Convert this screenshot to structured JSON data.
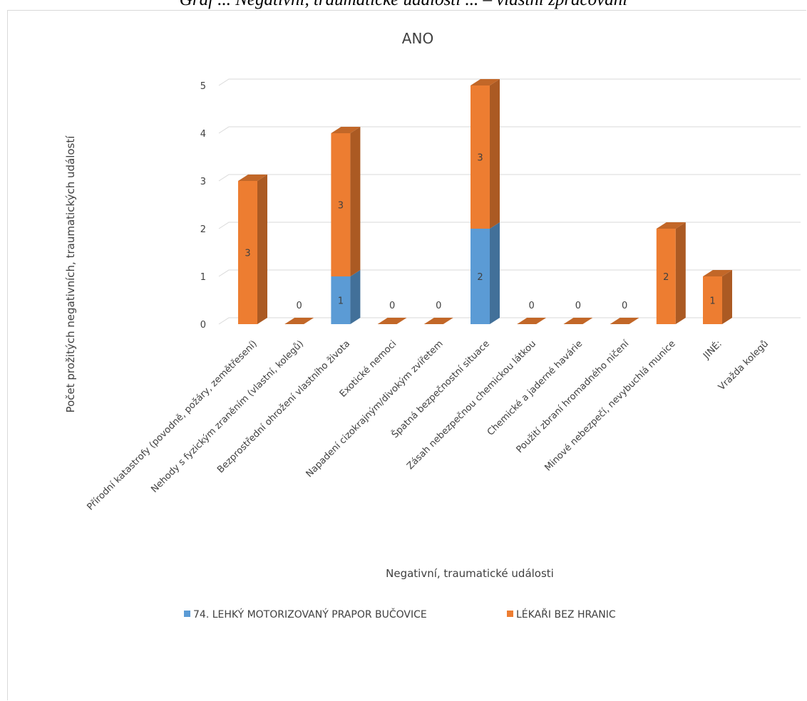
{
  "caption": "Graf ... Negativní, traumatické události ... – vlastní zpracování",
  "chart_data": {
    "type": "bar",
    "stacked": true,
    "title": "ANO",
    "xlabel": "Negativní, traumatické události",
    "ylabel": "Počet prožitých negativních, traumatických událostí",
    "ylim": [
      0,
      5
    ],
    "yticks": [
      0,
      1,
      2,
      3,
      4,
      5
    ],
    "grid": true,
    "legend_position": "bottom",
    "categories": [
      "Přírodní katastrofy (povodně, požáry, zemětřesení)",
      "Nehody s fyzickým zraněním (vlastní, kolegů)",
      "Bezprostřední ohrožení vlastního života",
      "Exotické nemoci",
      "Napadení cizokrajným/divokým zvířetem",
      "Špatná bezpečnostní situace",
      "Zásah nebezpečnou chemickou látkou",
      "Chemické a jaderné havárie",
      "Použití zbraní hromadného ničení",
      "Minové nebezpečí, nevybuchlá munice",
      "JINÉ:",
      "Vražda kolegů"
    ],
    "series": [
      {
        "name": "74. LEHKÝ MOTORIZOVANÝ PRAPOR BUČOVICE",
        "color": "#5B9BD5",
        "values": [
          0,
          0,
          1,
          0,
          0,
          2,
          0,
          0,
          0,
          0,
          0,
          null
        ],
        "labels": [
          "",
          "",
          "1",
          "",
          "",
          "2",
          "",
          "",
          "",
          "",
          "",
          ""
        ]
      },
      {
        "name": "LÉKAŘI BEZ HRANIC",
        "color": "#ED7D31",
        "values": [
          3,
          0,
          3,
          0,
          0,
          3,
          0,
          0,
          0,
          2,
          1,
          null
        ],
        "labels": [
          "3",
          "0",
          "3",
          "0",
          "0",
          "3",
          "0",
          "0",
          "0",
          "2",
          "1",
          ""
        ]
      }
    ]
  }
}
